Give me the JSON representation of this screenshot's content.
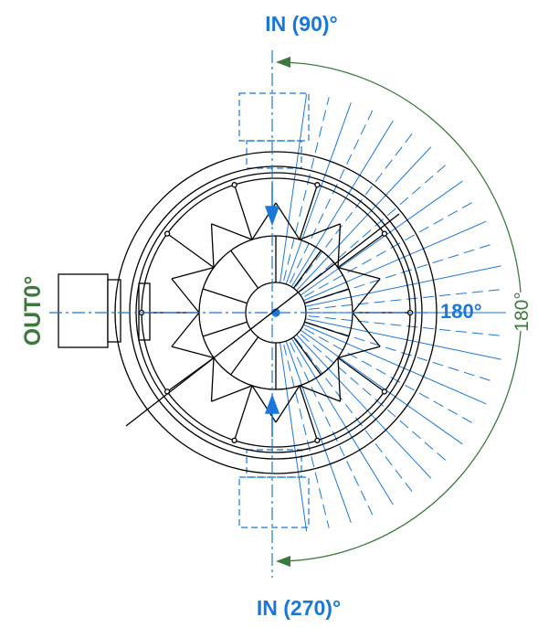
{
  "labels": {
    "top_inlet": "IN (90)°",
    "bottom_inlet": "IN (270)°",
    "outlet": "OUT0°",
    "right_angle": "180°",
    "arc_angle": "180°"
  },
  "colors": {
    "blue": "#1a78d8",
    "green": "#3c7a3c",
    "black": "#000000"
  }
}
